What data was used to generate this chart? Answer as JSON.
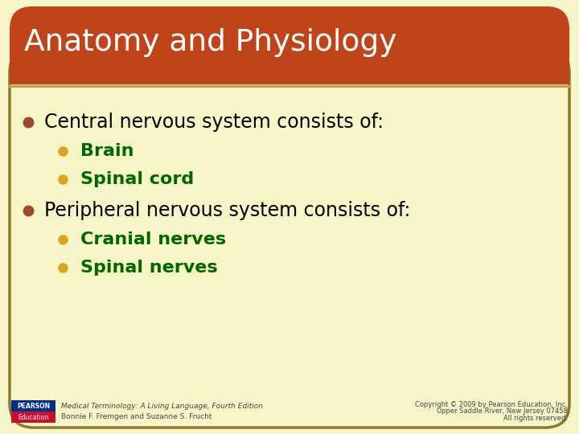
{
  "title": "Anatomy and Physiology",
  "title_bg_color": "#C0441A",
  "title_text_color": "#FFFFFF",
  "slide_bg_color": "#F5F5C8",
  "border_color": "#8B7A2A",
  "bullet1_text": "Central nervous system consists of:",
  "bullet1_color": "#000000",
  "bullet1_dot_color": "#9B4A2A",
  "sub_bullet1": [
    "Brain",
    "Spinal cord"
  ],
  "sub_bullet1_colors": [
    "#006600",
    "#006600"
  ],
  "sub_bullet1_dot_color": "#DAA520",
  "bullet2_text": "Peripheral nervous system consists of:",
  "bullet2_color": "#000000",
  "bullet2_dot_color": "#9B4A2A",
  "sub_bullet2": [
    "Cranial nerves",
    "Spinal nerves"
  ],
  "sub_bullet2_colors": [
    "#006600",
    "#006600"
  ],
  "sub_bullet2_dot_color": "#DAA520",
  "footer_left1": "Medical Terminology: A Living Language, Fourth Edition",
  "footer_left2": "Bonnie F. Fremgen and Suzanne S. Frucht",
  "footer_right1": "Copyright © 2009 by Pearson Education, Inc.",
  "footer_right2": "Upper Saddle River, New Jersey 07458",
  "footer_right3": "All rights reserved.",
  "footer_color": "#444444",
  "pearson_box_color1": "#003087",
  "pearson_box_color2": "#C8102E",
  "line_color": "#C8A050"
}
